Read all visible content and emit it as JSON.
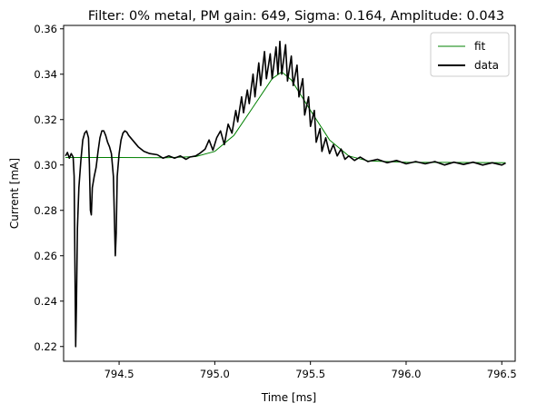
{
  "chart_data": {
    "type": "line",
    "title": "Filter: 0% metal, PM gain: 649, Sigma: 0.164, Amplitude: 0.043",
    "xlabel": "Time [ms]",
    "ylabel": "Current [mA]",
    "xlim": [
      794.21,
      796.57
    ],
    "ylim": [
      0.2135,
      0.3615
    ],
    "x_ticks": [
      794.5,
      795.0,
      795.5,
      796.0,
      796.5
    ],
    "x_tick_labels": [
      "794.5",
      "795.0",
      "795.5",
      "796.0",
      "796.5"
    ],
    "y_ticks": [
      0.22,
      0.24,
      0.26,
      0.28,
      0.3,
      0.32,
      0.34,
      0.36
    ],
    "y_tick_labels": [
      "0.22",
      "0.24",
      "0.26",
      "0.28",
      "0.30",
      "0.32",
      "0.34",
      "0.36"
    ],
    "grid": false,
    "legend_position": "top-right",
    "series": [
      {
        "name": "fit",
        "color": "#008000",
        "points": [
          [
            794.22,
            0.3033
          ],
          [
            794.5,
            0.3033
          ],
          [
            794.75,
            0.3032
          ],
          [
            794.9,
            0.3037
          ],
          [
            795.0,
            0.306
          ],
          [
            795.1,
            0.313
          ],
          [
            795.2,
            0.3255
          ],
          [
            795.3,
            0.338
          ],
          [
            795.35,
            0.341
          ],
          [
            795.4,
            0.3375
          ],
          [
            795.5,
            0.324
          ],
          [
            795.6,
            0.311
          ],
          [
            795.7,
            0.304
          ],
          [
            795.8,
            0.3018
          ],
          [
            796.0,
            0.3012
          ],
          [
            796.52,
            0.301
          ]
        ]
      },
      {
        "name": "data",
        "color": "#000000",
        "points": [
          [
            794.22,
            0.304
          ],
          [
            794.23,
            0.3055
          ],
          [
            794.24,
            0.303
          ],
          [
            794.25,
            0.305
          ],
          [
            794.26,
            0.3035
          ],
          [
            794.265,
            0.295
          ],
          [
            794.27,
            0.25
          ],
          [
            794.273,
            0.22
          ],
          [
            794.277,
            0.238
          ],
          [
            794.282,
            0.272
          ],
          [
            794.29,
            0.29
          ],
          [
            794.3,
            0.302
          ],
          [
            794.31,
            0.311
          ],
          [
            794.32,
            0.314
          ],
          [
            794.33,
            0.315
          ],
          [
            794.34,
            0.312
          ],
          [
            794.345,
            0.3
          ],
          [
            794.35,
            0.28
          ],
          [
            794.355,
            0.278
          ],
          [
            794.36,
            0.29
          ],
          [
            794.37,
            0.295
          ],
          [
            794.38,
            0.299
          ],
          [
            794.39,
            0.306
          ],
          [
            794.4,
            0.312
          ],
          [
            794.41,
            0.315
          ],
          [
            794.42,
            0.315
          ],
          [
            794.43,
            0.313
          ],
          [
            794.44,
            0.31
          ],
          [
            794.45,
            0.308
          ],
          [
            794.46,
            0.305
          ],
          [
            794.47,
            0.295
          ],
          [
            794.48,
            0.26
          ],
          [
            794.485,
            0.27
          ],
          [
            794.49,
            0.295
          ],
          [
            794.5,
            0.305
          ],
          [
            794.51,
            0.311
          ],
          [
            794.52,
            0.314
          ],
          [
            794.53,
            0.315
          ],
          [
            794.54,
            0.3145
          ],
          [
            794.55,
            0.313
          ],
          [
            794.57,
            0.311
          ],
          [
            794.6,
            0.308
          ],
          [
            794.63,
            0.306
          ],
          [
            794.66,
            0.305
          ],
          [
            794.7,
            0.3045
          ],
          [
            794.73,
            0.303
          ],
          [
            794.76,
            0.304
          ],
          [
            794.79,
            0.303
          ],
          [
            794.82,
            0.304
          ],
          [
            794.85,
            0.3025
          ],
          [
            794.87,
            0.3035
          ],
          [
            794.9,
            0.304
          ],
          [
            794.92,
            0.305
          ],
          [
            794.95,
            0.307
          ],
          [
            794.97,
            0.311
          ],
          [
            794.99,
            0.3065
          ],
          [
            795.01,
            0.312
          ],
          [
            795.03,
            0.315
          ],
          [
            795.05,
            0.309
          ],
          [
            795.07,
            0.318
          ],
          [
            795.09,
            0.314
          ],
          [
            795.11,
            0.324
          ],
          [
            795.12,
            0.319
          ],
          [
            795.14,
            0.33
          ],
          [
            795.15,
            0.323
          ],
          [
            795.17,
            0.333
          ],
          [
            795.18,
            0.327
          ],
          [
            795.2,
            0.34
          ],
          [
            795.21,
            0.33
          ],
          [
            795.23,
            0.345
          ],
          [
            795.24,
            0.335
          ],
          [
            795.26,
            0.35
          ],
          [
            795.27,
            0.338
          ],
          [
            795.29,
            0.349
          ],
          [
            795.3,
            0.338
          ],
          [
            795.32,
            0.352
          ],
          [
            795.33,
            0.34
          ],
          [
            795.34,
            0.3545
          ],
          [
            795.35,
            0.34
          ],
          [
            795.37,
            0.353
          ],
          [
            795.38,
            0.337
          ],
          [
            795.4,
            0.348
          ],
          [
            795.41,
            0.335
          ],
          [
            795.43,
            0.344
          ],
          [
            795.44,
            0.33
          ],
          [
            795.46,
            0.338
          ],
          [
            795.47,
            0.322
          ],
          [
            795.49,
            0.33
          ],
          [
            795.5,
            0.317
          ],
          [
            795.52,
            0.324
          ],
          [
            795.53,
            0.31
          ],
          [
            795.55,
            0.316
          ],
          [
            795.56,
            0.306
          ],
          [
            795.58,
            0.312
          ],
          [
            795.6,
            0.305
          ],
          [
            795.62,
            0.309
          ],
          [
            795.64,
            0.304
          ],
          [
            795.66,
            0.307
          ],
          [
            795.68,
            0.3025
          ],
          [
            795.7,
            0.304
          ],
          [
            795.73,
            0.302
          ],
          [
            795.76,
            0.3035
          ],
          [
            795.8,
            0.3015
          ],
          [
            795.85,
            0.3025
          ],
          [
            795.9,
            0.301
          ],
          [
            795.95,
            0.302
          ],
          [
            796.0,
            0.3005
          ],
          [
            796.05,
            0.3015
          ],
          [
            796.1,
            0.3005
          ],
          [
            796.15,
            0.3015
          ],
          [
            796.2,
            0.3
          ],
          [
            796.25,
            0.3012
          ],
          [
            796.3,
            0.3002
          ],
          [
            796.35,
            0.3012
          ],
          [
            796.4,
            0.3
          ],
          [
            796.45,
            0.301
          ],
          [
            796.5,
            0.3
          ],
          [
            796.52,
            0.3008
          ]
        ]
      }
    ]
  }
}
